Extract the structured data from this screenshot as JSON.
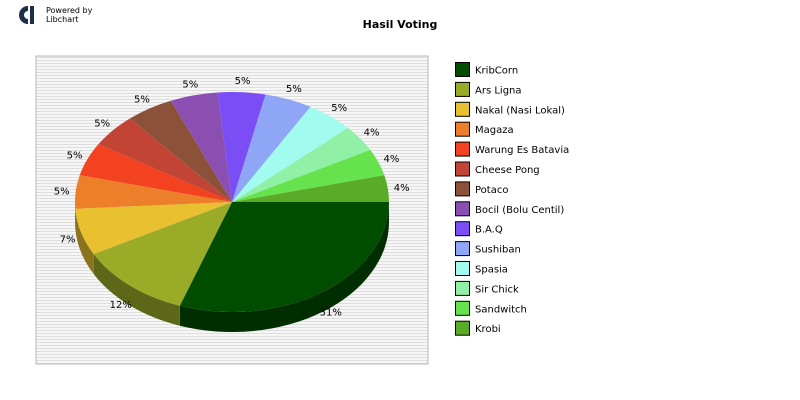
{
  "header": {
    "powered_line1": "Powered by",
    "powered_line2": "Libchart"
  },
  "chart_data": {
    "type": "pie",
    "title": "Hasil Voting",
    "legend_position": "right",
    "slices": [
      {
        "label": "KribCorn",
        "percent": "31%",
        "value": 31,
        "color": "#004d00"
      },
      {
        "label": "Ars Ligna",
        "percent": "12%",
        "value": 12,
        "color": "#9aab28"
      },
      {
        "label": "Nakal (Nasi Lokal)",
        "percent": "7%",
        "value": 7,
        "color": "#e8c030"
      },
      {
        "label": "Magaza",
        "percent": "5%",
        "value": 5,
        "color": "#ee7f2a"
      },
      {
        "label": "Warung Es Batavia",
        "percent": "5%",
        "value": 5,
        "color": "#f2421f"
      },
      {
        "label": "Cheese Pong",
        "percent": "5%",
        "value": 5,
        "color": "#c24434"
      },
      {
        "label": "Potaco",
        "percent": "5%",
        "value": 5,
        "color": "#8c5239"
      },
      {
        "label": "Bocil (Bolu Centil)",
        "percent": "5%",
        "value": 5,
        "color": "#8a4fb0"
      },
      {
        "label": "B.A.Q",
        "percent": "5%",
        "value": 5,
        "color": "#7a4df5"
      },
      {
        "label": "Sushiban",
        "percent": "5%",
        "value": 5,
        "color": "#8ea6f5"
      },
      {
        "label": "Spasia",
        "percent": "5%",
        "value": 5,
        "color": "#a2fbef"
      },
      {
        "label": "Sir Chick",
        "percent": "4%",
        "value": 4,
        "color": "#8ff0a6"
      },
      {
        "label": "Sandwitch",
        "percent": "4%",
        "value": 4,
        "color": "#66e24c"
      },
      {
        "label": "Krobi",
        "percent": "4%",
        "value": 4,
        "color": "#5aab28"
      }
    ]
  }
}
